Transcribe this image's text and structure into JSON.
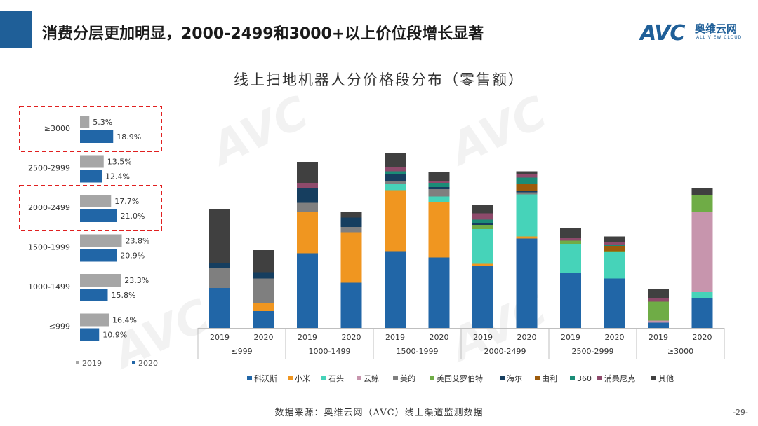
{
  "header": {
    "title": "消费分层更加明显，2000-2499和3000+以上价位段增长显著",
    "logo_text": "AVC",
    "logo_cn": "奥维云网",
    "logo_en": "ALL VIEW CLOUD"
  },
  "watermark": {
    "text": "AVC 奥维云网"
  },
  "footer": {
    "source": "数据来源：奥维云网（AVC）线上渠道监测数据",
    "page": "-29-"
  },
  "colors": {
    "y2019": "#a6a6a6",
    "y2020": "#2166a7",
    "highlight": "#e02020",
    "brands": [
      "#2166a7",
      "#f09620",
      "#46d3b9",
      "#c795ad",
      "#7f7f7f",
      "#6fac46",
      "#163e5f",
      "#9d5b0b",
      "#1a8c77",
      "#8e4a6b",
      "#404040"
    ]
  },
  "chart_data": [
    {
      "type": "bar",
      "orientation": "horizontal",
      "categories": [
        "≥3000",
        "2500-2999",
        "2000-2499",
        "1500-1999",
        "1000-1499",
        "≤999"
      ],
      "series": [
        {
          "name": "2019",
          "values": [
            5.3,
            13.5,
            17.7,
            23.8,
            23.3,
            16.4
          ]
        },
        {
          "name": "2020",
          "values": [
            18.9,
            12.4,
            21.0,
            20.9,
            15.8,
            10.9
          ]
        }
      ],
      "labels": {
        "2019": [
          "5.3%",
          "13.5%",
          "17.7%",
          "23.8%",
          "23.3%",
          "16.4%"
        ],
        "2020": [
          "18.9%",
          "12.4%",
          "21.0%",
          "20.9%",
          "15.8%",
          "10.9%"
        ]
      },
      "highlighted": [
        "≥3000",
        "2000-2499"
      ],
      "legend": [
        "2019",
        "2020"
      ]
    },
    {
      "type": "bar",
      "stacked": true,
      "title": "线上扫地机器人分价格段分布（零售额）",
      "groups": [
        "≤999",
        "1000-1499",
        "1500-1999",
        "2000-2499",
        "2500-2999",
        "≥3000"
      ],
      "years": [
        "2019",
        "2020"
      ],
      "series_names": [
        "科沃斯",
        "小米",
        "石头",
        "云鲸",
        "美的",
        "美国艾罗伯特",
        "海尔",
        "由利",
        "360",
        "浦桑尼克",
        "其他"
      ],
      "stacks": [
        [
          19,
          0,
          0,
          0,
          9.5,
          0,
          2.5,
          0,
          0,
          0,
          25.5
        ],
        [
          8,
          4,
          0,
          0,
          11.5,
          0,
          3,
          0,
          0,
          0,
          10.5
        ],
        [
          35.5,
          19.5,
          0,
          0,
          4.5,
          0,
          7,
          0,
          0,
          2.5,
          10
        ],
        [
          21.5,
          24,
          0,
          0,
          2.5,
          0,
          4.5,
          0,
          0,
          0,
          2.5
        ],
        [
          36.5,
          29,
          3,
          0,
          1.5,
          0,
          3,
          0,
          1.5,
          2,
          6.5
        ],
        [
          33.5,
          26.5,
          2.5,
          0,
          3.5,
          0,
          1,
          0,
          2,
          1,
          4
        ],
        [
          29.5,
          1,
          16.5,
          0,
          0,
          2,
          1,
          0,
          1.5,
          3,
          4
        ],
        [
          42.5,
          1,
          20,
          0,
          1,
          0,
          0.5,
          3.5,
          3,
          1.5,
          1.5
        ],
        [
          26,
          0,
          14,
          0,
          0,
          1.5,
          0,
          0,
          0,
          1.5,
          4.5
        ],
        [
          23.5,
          0,
          12.5,
          0,
          0,
          0.5,
          0,
          2.5,
          0.5,
          1.5,
          2.5
        ],
        [
          2.5,
          0,
          0,
          1,
          0,
          9,
          0,
          0,
          0,
          1.5,
          4.5
        ],
        [
          14,
          0,
          3,
          38,
          0,
          8,
          0,
          0,
          0,
          0,
          3.5
        ]
      ],
      "ylim": [
        0,
        70
      ]
    }
  ]
}
